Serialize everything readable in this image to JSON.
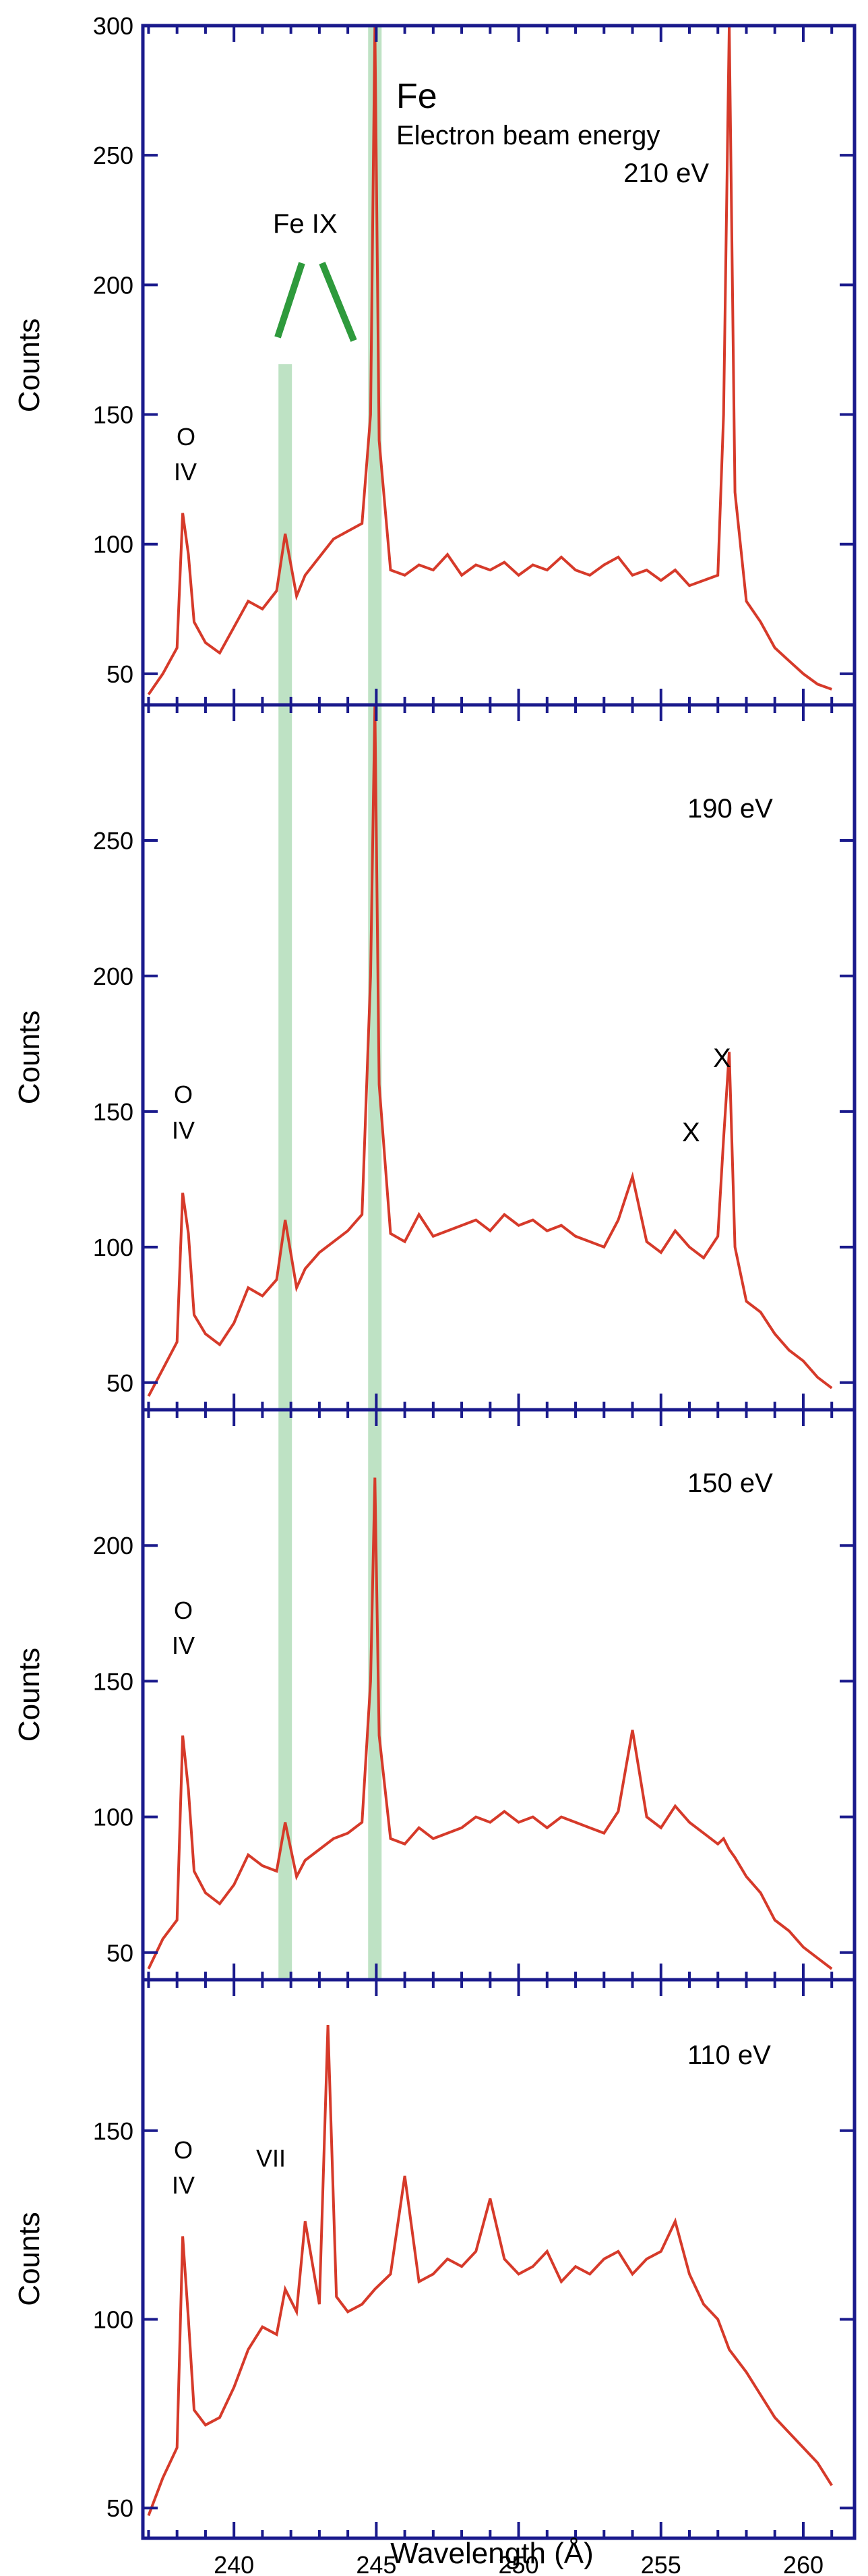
{
  "chart_data": {
    "type": "line",
    "xlabel": "Wavelength (Å)",
    "ylabel": "Counts",
    "xlim": [
      236.8,
      261.8
    ],
    "xticks": [
      240,
      245,
      250,
      255,
      260
    ],
    "colors": {
      "frame": "#1a1a8c",
      "trace": "#d63a2a",
      "highlight": "#a8d8b0",
      "marker": "#2e9a3c"
    },
    "highlight_bands_x": [
      241.8,
      244.95
    ],
    "panels": [
      {
        "label": "210 eV",
        "ylim": [
          38,
          300
        ],
        "yticks": [
          50,
          100,
          150,
          200,
          250,
          300
        ],
        "annotations": [
          "Fe",
          "Electron beam energy",
          "210 eV",
          "Fe IX",
          "O",
          "IV"
        ],
        "x": [
          237.0,
          237.5,
          238.0,
          238.2,
          238.4,
          238.6,
          239.0,
          239.5,
          240.0,
          240.5,
          241.0,
          241.5,
          241.8,
          242.2,
          242.5,
          243.0,
          243.5,
          244.0,
          244.5,
          244.8,
          244.95,
          245.1,
          245.5,
          246.0,
          246.5,
          247.0,
          247.5,
          248.0,
          248.5,
          249.0,
          249.5,
          250.0,
          250.5,
          251.0,
          251.5,
          252.0,
          252.5,
          253.0,
          253.5,
          254.0,
          254.5,
          255.0,
          255.5,
          256.0,
          256.5,
          257.0,
          257.2,
          257.4,
          257.6,
          258.0,
          258.5,
          259.0,
          259.5,
          260.0,
          260.5,
          261.0
        ],
        "y": [
          42,
          50,
          60,
          112,
          96,
          70,
          62,
          58,
          68,
          78,
          75,
          82,
          104,
          80,
          88,
          95,
          102,
          105,
          108,
          150,
          300,
          140,
          90,
          88,
          92,
          90,
          96,
          88,
          92,
          90,
          93,
          88,
          92,
          90,
          95,
          90,
          88,
          92,
          95,
          88,
          90,
          86,
          90,
          84,
          86,
          88,
          150,
          300,
          120,
          78,
          70,
          60,
          55,
          50,
          46,
          44
        ]
      },
      {
        "label": "190 eV",
        "ylim": [
          40,
          300
        ],
        "yticks": [
          50,
          100,
          150,
          200,
          250
        ],
        "annotations": [
          "190 eV",
          "X",
          "X",
          "O",
          "IV"
        ],
        "x": [
          237.0,
          237.5,
          238.0,
          238.2,
          238.4,
          238.6,
          239.0,
          239.5,
          240.0,
          240.5,
          241.0,
          241.5,
          241.8,
          242.2,
          242.5,
          243.0,
          243.5,
          244.0,
          244.5,
          244.8,
          244.95,
          245.1,
          245.5,
          246.0,
          246.5,
          247.0,
          247.5,
          248.0,
          248.5,
          249.0,
          249.5,
          250.0,
          250.5,
          251.0,
          251.5,
          252.0,
          252.5,
          253.0,
          253.5,
          254.0,
          254.5,
          255.0,
          255.5,
          256.0,
          256.5,
          257.0,
          257.2,
          257.4,
          257.6,
          258.0,
          258.5,
          259.0,
          259.5,
          260.0,
          260.5,
          261.0
        ],
        "y": [
          45,
          55,
          65,
          120,
          105,
          75,
          68,
          64,
          72,
          85,
          82,
          88,
          110,
          85,
          92,
          98,
          102,
          106,
          112,
          200,
          300,
          160,
          105,
          102,
          112,
          104,
          106,
          108,
          110,
          106,
          112,
          108,
          110,
          106,
          108,
          104,
          102,
          100,
          110,
          126,
          102,
          98,
          106,
          100,
          96,
          104,
          140,
          172,
          100,
          80,
          76,
          68,
          62,
          58,
          52,
          48
        ]
      },
      {
        "label": "150 eV",
        "ylim": [
          40,
          250
        ],
        "yticks": [
          50,
          100,
          150,
          200
        ],
        "annotations": [
          "150 eV",
          "O",
          "IV"
        ],
        "x": [
          237.0,
          237.5,
          238.0,
          238.2,
          238.4,
          238.6,
          239.0,
          239.5,
          240.0,
          240.5,
          241.0,
          241.5,
          241.8,
          242.2,
          242.5,
          243.0,
          243.5,
          244.0,
          244.5,
          244.8,
          244.95,
          245.1,
          245.5,
          246.0,
          246.5,
          247.0,
          247.5,
          248.0,
          248.5,
          249.0,
          249.5,
          250.0,
          250.5,
          251.0,
          251.5,
          252.0,
          252.5,
          253.0,
          253.5,
          254.0,
          254.5,
          255.0,
          255.5,
          256.0,
          256.5,
          257.0,
          257.2,
          257.4,
          257.6,
          258.0,
          258.5,
          259.0,
          259.5,
          260.0,
          260.5,
          261.0
        ],
        "y": [
          44,
          55,
          62,
          130,
          110,
          80,
          72,
          68,
          75,
          86,
          82,
          80,
          98,
          78,
          84,
          88,
          92,
          94,
          98,
          150,
          225,
          130,
          92,
          90,
          96,
          92,
          94,
          96,
          100,
          98,
          102,
          98,
          100,
          96,
          100,
          98,
          96,
          94,
          102,
          132,
          100,
          96,
          104,
          98,
          94,
          90,
          92,
          88,
          85,
          78,
          72,
          62,
          58,
          52,
          48,
          44
        ]
      },
      {
        "label": "110 eV",
        "ylim": [
          42,
          190
        ],
        "yticks": [
          50,
          100,
          150
        ],
        "annotations": [
          "110 eV",
          "O",
          "IV",
          "VII"
        ],
        "x": [
          237.0,
          237.5,
          238.0,
          238.2,
          238.4,
          238.6,
          239.0,
          239.5,
          240.0,
          240.5,
          241.0,
          241.5,
          241.8,
          242.2,
          242.5,
          243.0,
          243.3,
          243.6,
          244.0,
          244.5,
          244.95,
          245.5,
          246.0,
          246.5,
          247.0,
          247.5,
          248.0,
          248.5,
          249.0,
          249.5,
          250.0,
          250.5,
          251.0,
          251.5,
          252.0,
          252.5,
          253.0,
          253.5,
          254.0,
          254.5,
          255.0,
          255.5,
          256.0,
          256.5,
          257.0,
          257.2,
          257.4,
          257.6,
          258.0,
          258.5,
          259.0,
          259.5,
          260.0,
          260.5,
          261.0
        ],
        "y": [
          48,
          58,
          66,
          122,
          100,
          76,
          72,
          74,
          82,
          92,
          98,
          96,
          108,
          102,
          126,
          104,
          178,
          106,
          102,
          104,
          108,
          112,
          138,
          110,
          112,
          116,
          114,
          118,
          132,
          116,
          112,
          114,
          118,
          110,
          114,
          112,
          116,
          118,
          112,
          116,
          118,
          126,
          112,
          104,
          100,
          96,
          92,
          90,
          86,
          80,
          74,
          70,
          66,
          62,
          56
        ]
      }
    ]
  }
}
